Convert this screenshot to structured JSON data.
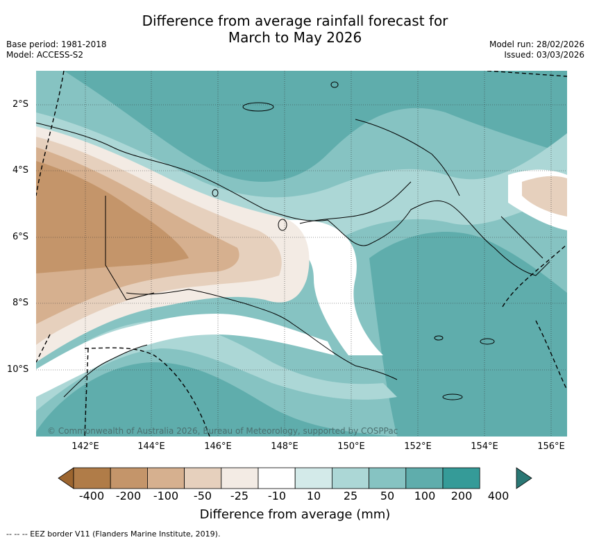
{
  "title": {
    "line1": "Difference from average rainfall forecast for",
    "line2": "March to May 2026"
  },
  "meta_left": {
    "base_period": "Base period: 1981-2018",
    "model": "Model: ACCESS-S2"
  },
  "meta_right": {
    "model_run": "Model run: 28/02/2026",
    "issued": "Issued: 03/03/2026"
  },
  "map": {
    "lat_labels": [
      "2°S",
      "4°S",
      "6°S",
      "8°S",
      "10°S"
    ],
    "lon_labels": [
      "142°E",
      "144°E",
      "146°E",
      "148°E",
      "150°E",
      "152°E",
      "154°E",
      "156°E"
    ],
    "copyright": "© Commonwealth of Australia 2026, Bureau of Meteorology, supported by COSPPac"
  },
  "colorbar": {
    "labels": [
      "-400",
      "-200",
      "-100",
      "-50",
      "-25",
      "-10",
      "10",
      "25",
      "50",
      "100",
      "200",
      "400"
    ],
    "colors": [
      "#9c652f",
      "#b07c48",
      "#c4956a",
      "#d6b08f",
      "#e6d0bd",
      "#f3ebe4",
      "#ffffff",
      "#d3eae9",
      "#acd7d6",
      "#86c3c2",
      "#5fadac",
      "#359b98",
      "#2a7774"
    ],
    "title": "Difference from average (mm)"
  },
  "footnote": "--  --  -- EEZ border V11 (Flanders Marine Institute, 2019)."
}
